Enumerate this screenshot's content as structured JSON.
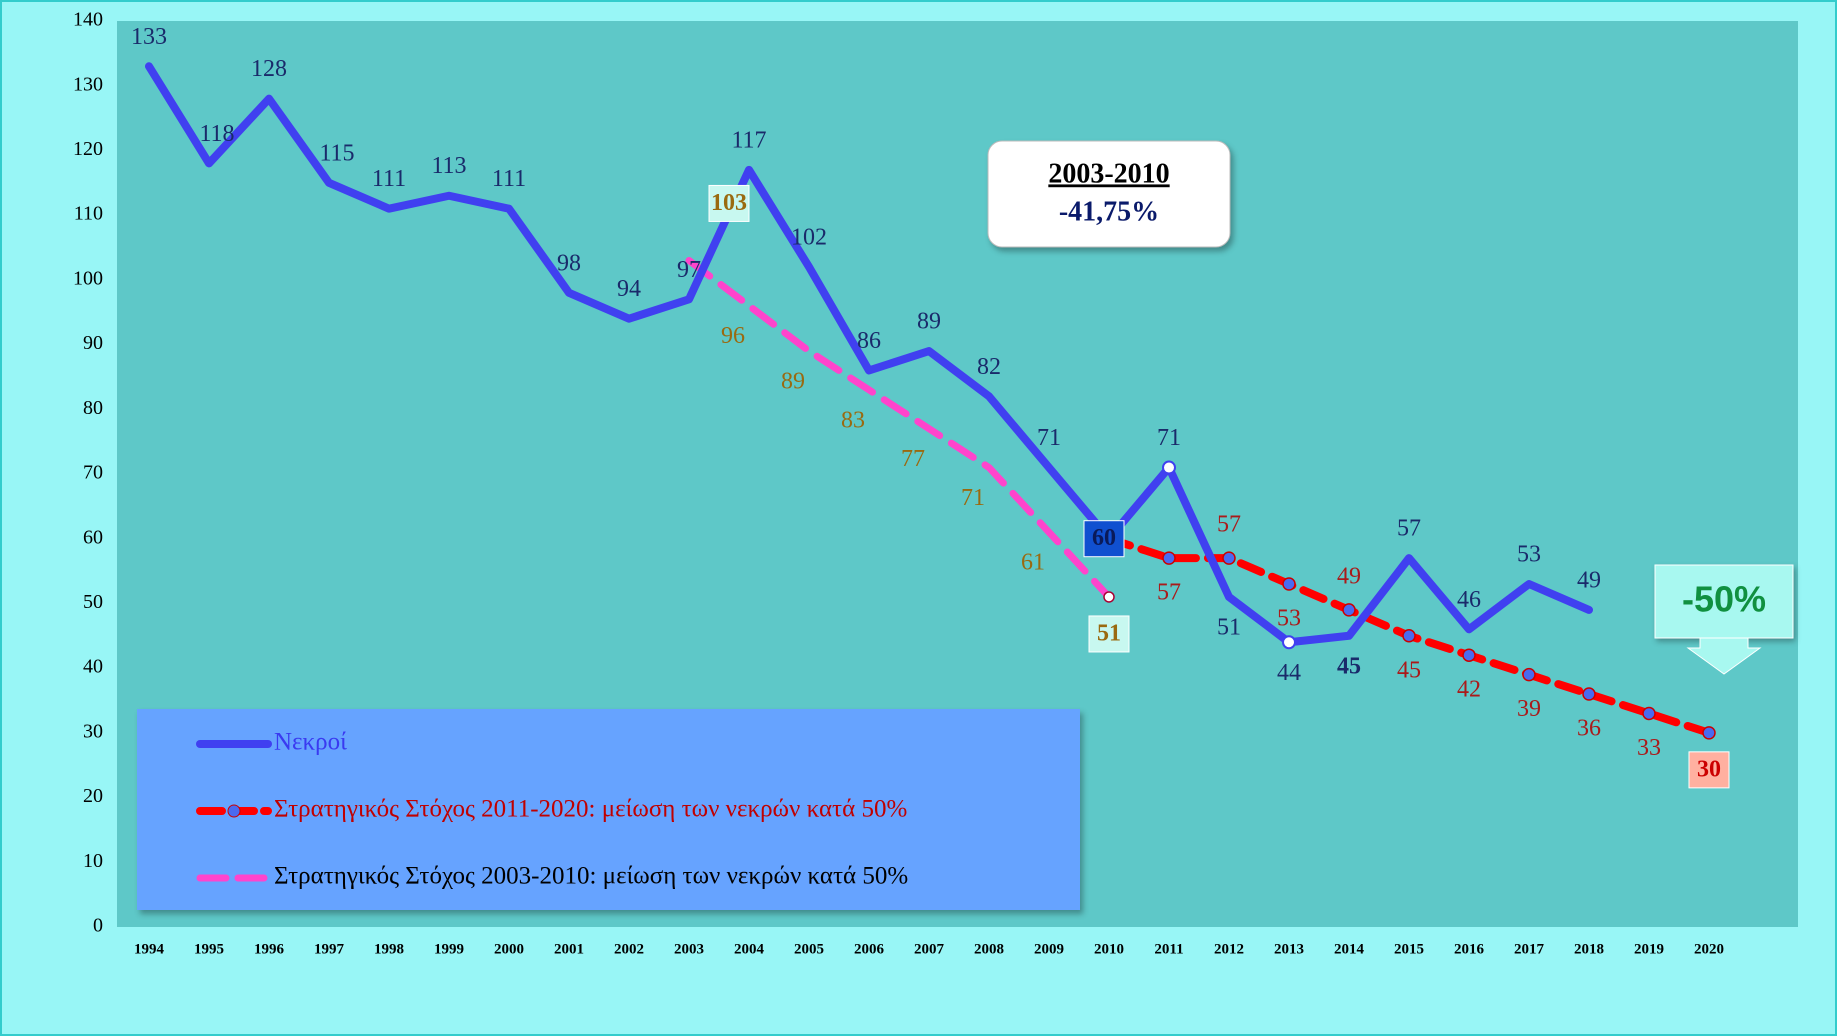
{
  "chart_data": {
    "type": "line",
    "categories": [
      "1994",
      "1995",
      "1996",
      "1997",
      "1998",
      "1999",
      "2000",
      "2001",
      "2002",
      "2003",
      "2004",
      "2005",
      "2006",
      "2007",
      "2008",
      "2009",
      "2010",
      "2011",
      "2012",
      "2013",
      "2014",
      "2015",
      "2016",
      "2017",
      "2018",
      "2019",
      "2020"
    ],
    "series": [
      {
        "name": "Νεκροί",
        "color": "#4040f0",
        "values": [
          133,
          118,
          128,
          115,
          111,
          113,
          111,
          98,
          94,
          97,
          117,
          102,
          86,
          89,
          82,
          71,
          60,
          71,
          51,
          44,
          45,
          57,
          46,
          53,
          49,
          null,
          null
        ]
      },
      {
        "name": "Στρατηγικός Στόχος 2011-2020: μείωση των νεκρών κατά 50%",
        "color": "#ff0000",
        "values": [
          null,
          null,
          null,
          null,
          null,
          null,
          null,
          null,
          null,
          null,
          null,
          null,
          null,
          null,
          null,
          null,
          60,
          57,
          57,
          53,
          49,
          45,
          42,
          39,
          36,
          33,
          30
        ]
      },
      {
        "name": "Στρατηγικός Στόχος 2003-2010: μείωση των νεκρών κατά 50%",
        "color": "#ff44cc",
        "values": [
          null,
          null,
          null,
          null,
          null,
          null,
          null,
          null,
          null,
          103,
          96,
          89,
          83,
          77,
          71,
          61,
          51,
          null,
          null,
          null,
          null,
          null,
          null,
          null,
          null,
          null,
          null
        ]
      }
    ],
    "ylim": [
      0,
      140
    ],
    "yticks": [
      0,
      10,
      20,
      30,
      40,
      50,
      60,
      70,
      80,
      90,
      100,
      110,
      120,
      130,
      140
    ],
    "grid": true,
    "annotations": [
      "2003-2010",
      "-41,75%",
      "-50%"
    ]
  }
}
